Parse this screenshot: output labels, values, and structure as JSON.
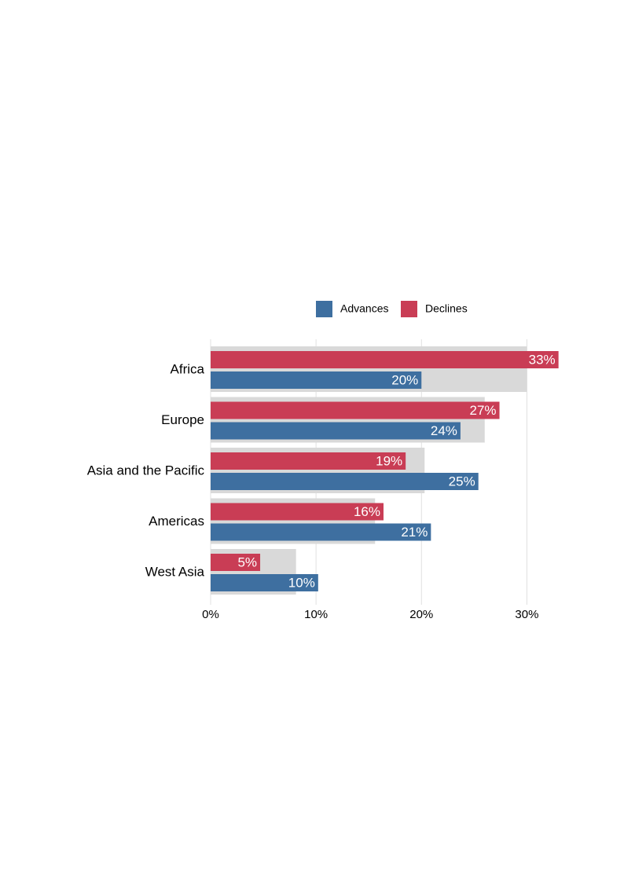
{
  "chart_data": {
    "type": "bar",
    "orientation": "horizontal",
    "categories": [
      "Africa",
      "Europe",
      "Asia and the Pacific",
      "Americas",
      "West Asia"
    ],
    "series": [
      {
        "name": "Advances",
        "color": "#3e6fa0",
        "values": [
          20,
          23.7,
          25.4,
          20.9,
          10.2
        ],
        "value_labels": [
          "20%",
          "24%",
          "25%",
          "21%",
          "10%"
        ]
      },
      {
        "name": "Declines",
        "color": "#c93d55",
        "values": [
          33,
          27.4,
          18.5,
          16.4,
          4.7
        ],
        "value_labels": [
          "33%",
          "27%",
          "19%",
          "16%",
          "5%"
        ]
      }
    ],
    "background": {
      "color": "#d9d9d9",
      "values": [
        30,
        26,
        20.3,
        15.6,
        8.1
      ]
    },
    "xlim": [
      0,
      33.1
    ],
    "xticks": [
      {
        "value": 0,
        "label": "0%"
      },
      {
        "value": 10,
        "label": "10%"
      },
      {
        "value": 20,
        "label": "20%"
      },
      {
        "value": 30,
        "label": "30%"
      }
    ],
    "grid": true,
    "legend": "top"
  }
}
